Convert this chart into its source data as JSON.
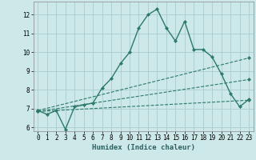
{
  "title": "",
  "xlabel": "Humidex (Indice chaleur)",
  "bg_color": "#cce8e8",
  "grid_color": "#aacccc",
  "line_color": "#2d7a6a",
  "xlim": [
    -0.5,
    23.5
  ],
  "ylim": [
    5.8,
    12.7
  ],
  "yticks": [
    6,
    7,
    8,
    9,
    10,
    11,
    12
  ],
  "xticks": [
    0,
    1,
    2,
    3,
    4,
    5,
    6,
    7,
    8,
    9,
    10,
    11,
    12,
    13,
    14,
    15,
    16,
    17,
    18,
    19,
    20,
    21,
    22,
    23
  ],
  "series": [
    {
      "x": [
        0,
        1,
        2,
        3,
        4,
        5,
        6,
        7,
        8,
        9,
        10,
        11,
        12,
        13,
        14,
        15,
        16,
        17,
        18,
        19,
        20,
        21,
        22,
        23
      ],
      "y": [
        6.9,
        6.7,
        6.9,
        5.9,
        7.1,
        7.2,
        7.3,
        8.1,
        8.6,
        9.4,
        10.0,
        11.3,
        12.0,
        12.3,
        11.3,
        10.6,
        11.65,
        10.15,
        10.15,
        9.75,
        8.85,
        7.8,
        7.1,
        7.5
      ],
      "linestyle": "-",
      "marker": "D",
      "markersize": 2.0,
      "linewidth": 1.0
    },
    {
      "x": [
        0,
        23
      ],
      "y": [
        6.9,
        9.7
      ],
      "linestyle": "--",
      "marker": "D",
      "markersize": 2.0,
      "linewidth": 0.8
    },
    {
      "x": [
        0,
        23
      ],
      "y": [
        6.85,
        8.55
      ],
      "linestyle": "--",
      "marker": "D",
      "markersize": 2.0,
      "linewidth": 0.8
    },
    {
      "x": [
        0,
        23
      ],
      "y": [
        6.85,
        7.45
      ],
      "linestyle": "--",
      "marker": "D",
      "markersize": 2.0,
      "linewidth": 0.8
    }
  ]
}
